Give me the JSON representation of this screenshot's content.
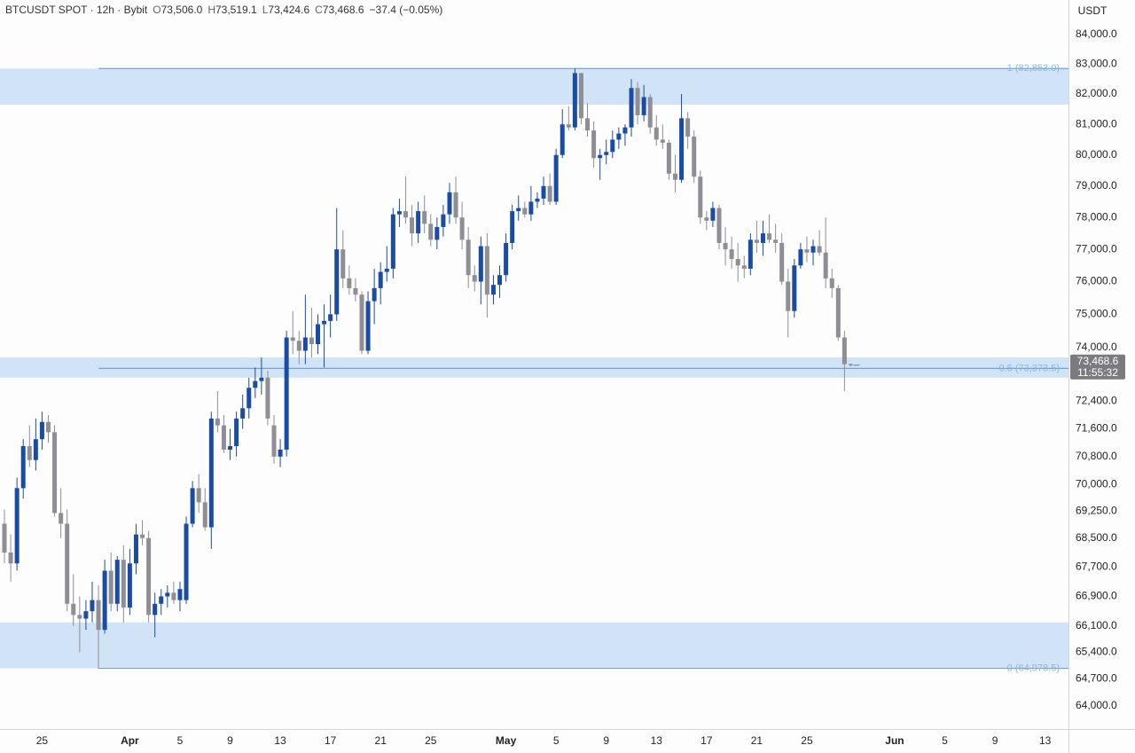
{
  "header": {
    "symbol": "BTCUSDT SPOT · 12h · Bybit",
    "open_label": "O",
    "open": "73,506.0",
    "high_label": "H",
    "high": "73,519.1",
    "low_label": "L",
    "low": "73,424.6",
    "close_label": "C",
    "close": "73,468.6",
    "change": "−37.4 (−0.05%)"
  },
  "chart_data": {
    "type": "candlestick",
    "axis_unit": "USDT",
    "log_scale": true,
    "grid": false,
    "up_color": "#1b4ca4",
    "down_color": "#8e8e94",
    "zone_color": "#cfe1f5",
    "fib_color": "#6fa3dc",
    "ylim": [
      63400,
      85185
    ],
    "yticks": [
      {
        "value": 84000,
        "label": "84,000.0"
      },
      {
        "value": 83000,
        "label": "83,000.0"
      },
      {
        "value": 82000,
        "label": "82,000.0"
      },
      {
        "value": 81000,
        "label": "81,000.0"
      },
      {
        "value": 80000,
        "label": "80,000.0"
      },
      {
        "value": 79000,
        "label": "79,000.0"
      },
      {
        "value": 78000,
        "label": "78,000.0"
      },
      {
        "value": 77000,
        "label": "77,000.0"
      },
      {
        "value": 76000,
        "label": "76,000.0"
      },
      {
        "value": 75000,
        "label": "75,000.0"
      },
      {
        "value": 74000,
        "label": "74,000.0"
      },
      {
        "value": 72400,
        "label": "72,400.0"
      },
      {
        "value": 71600,
        "label": "71,600.0"
      },
      {
        "value": 70800,
        "label": "70,800.0"
      },
      {
        "value": 70000,
        "label": "70,000.0"
      },
      {
        "value": 69250,
        "label": "69,250.0"
      },
      {
        "value": 68500,
        "label": "68,500.0"
      },
      {
        "value": 67700,
        "label": "67,700.0"
      },
      {
        "value": 66900,
        "label": "66,900.0"
      },
      {
        "value": 66100,
        "label": "66,100.0"
      },
      {
        "value": 65400,
        "label": "65,400.0"
      },
      {
        "value": 64700,
        "label": "64,700.0"
      },
      {
        "value": 64000,
        "label": "64,000.0"
      }
    ],
    "zones": [
      [
        81650,
        82850
      ],
      [
        73100,
        73700
      ],
      [
        64978.5,
        66200
      ]
    ],
    "fib_start": 15,
    "fib_levels": [
      {
        "value": 82853,
        "label": "1 (82,853.0)"
      },
      {
        "value": 73373.5,
        "label": "0.5 (73,373.5)"
      },
      {
        "value": 64978.5,
        "label": "0 (64,978.5)"
      }
    ],
    "price_label": {
      "value": 73468.6,
      "label": "73,468.6"
    },
    "countdown": "11:55:32",
    "categories": [
      null,
      null,
      null,
      null,
      null,
      null,
      "25",
      null,
      null,
      null,
      null,
      null,
      null,
      null,
      null,
      null,
      null,
      null,
      null,
      null,
      "Apr",
      null,
      null,
      null,
      null,
      null,
      null,
      null,
      "5",
      null,
      null,
      null,
      null,
      null,
      null,
      null,
      "9",
      null,
      null,
      null,
      null,
      null,
      null,
      null,
      "13",
      null,
      null,
      null,
      null,
      null,
      null,
      null,
      "17",
      null,
      null,
      null,
      null,
      null,
      null,
      null,
      "21",
      null,
      null,
      null,
      null,
      null,
      null,
      null,
      "25",
      null,
      null,
      null,
      null,
      null,
      null,
      null,
      null,
      null,
      null,
      null,
      "May",
      null,
      null,
      null,
      null,
      null,
      null,
      null,
      "5",
      null,
      null,
      null,
      null,
      null,
      null,
      null,
      "9",
      null,
      null,
      null,
      null,
      null,
      null,
      null,
      "13",
      null,
      null,
      null,
      null,
      null,
      null,
      null,
      "17",
      null,
      null,
      null,
      null,
      null,
      null,
      null,
      "21",
      null,
      null,
      null,
      null,
      null,
      null,
      null,
      "25",
      null,
      null,
      null,
      null,
      null,
      null,
      null,
      null,
      null,
      null,
      null,
      null,
      null,
      "Jun",
      null,
      null,
      null,
      null,
      null,
      null,
      null,
      "5",
      null,
      null,
      null,
      null,
      null,
      null,
      null,
      "9",
      null,
      null,
      null,
      null,
      null,
      null,
      null,
      "13",
      null,
      null,
      null
    ],
    "candles": [
      [
        68900,
        69300,
        67800,
        68100
      ],
      [
        68100,
        68600,
        67300,
        67800
      ],
      [
        67800,
        70200,
        67600,
        69900
      ],
      [
        69900,
        71300,
        69600,
        71100
      ],
      [
        71100,
        71700,
        70500,
        70700
      ],
      [
        70700,
        71900,
        70400,
        71300
      ],
      [
        71300,
        72100,
        71000,
        71800
      ],
      [
        71800,
        72000,
        71200,
        71500
      ],
      [
        71500,
        71700,
        69100,
        69200
      ],
      [
        69200,
        69900,
        68500,
        68900
      ],
      [
        68900,
        69300,
        66500,
        66700
      ],
      [
        66700,
        67500,
        66100,
        66400
      ],
      [
        66400,
        66900,
        65400,
        66300
      ],
      [
        66300,
        66800,
        66000,
        66500
      ],
      [
        66500,
        67300,
        66200,
        66800
      ],
      [
        66800,
        67200,
        64978.5,
        66000
      ],
      [
        66000,
        67900,
        65900,
        67600
      ],
      [
        67600,
        68100,
        66500,
        66700
      ],
      [
        66700,
        68000,
        66500,
        67900
      ],
      [
        67900,
        68300,
        66200,
        66600
      ],
      [
        66600,
        68200,
        66400,
        67800
      ],
      [
        67800,
        68900,
        67500,
        68600
      ],
      [
        68600,
        69000,
        68300,
        68500
      ],
      [
        68500,
        68700,
        66200,
        66400
      ],
      [
        66400,
        67000,
        65800,
        66700
      ],
      [
        66700,
        67100,
        66400,
        66900
      ],
      [
        66900,
        67200,
        66600,
        67000
      ],
      [
        67000,
        67300,
        66700,
        66800
      ],
      [
        66800,
        67300,
        66500,
        67100
      ],
      [
        66800,
        69100,
        66700,
        68900
      ],
      [
        68900,
        70100,
        68800,
        69900
      ],
      [
        69900,
        70300,
        69200,
        69500
      ],
      [
        69500,
        69900,
        68700,
        68800
      ],
      [
        68800,
        72100,
        68200,
        71900
      ],
      [
        71900,
        72700,
        71500,
        71700
      ],
      [
        71700,
        72000,
        70900,
        71000
      ],
      [
        71000,
        71600,
        70700,
        71100
      ],
      [
        71100,
        72100,
        70800,
        71900
      ],
      [
        71900,
        72600,
        71600,
        72200
      ],
      [
        72200,
        73100,
        71900,
        72800
      ],
      [
        72800,
        73400,
        72500,
        73000
      ],
      [
        73000,
        73700,
        72600,
        73100
      ],
      [
        73100,
        73300,
        71700,
        71900
      ],
      [
        71700,
        72000,
        70600,
        70800
      ],
      [
        70800,
        71300,
        70500,
        71000
      ],
      [
        71000,
        74500,
        70800,
        74300
      ],
      [
        74300,
        75100,
        73800,
        74200
      ],
      [
        74200,
        74500,
        73500,
        73900
      ],
      [
        73900,
        75600,
        73500,
        74300
      ],
      [
        74300,
        75200,
        73700,
        74100
      ],
      [
        74100,
        75000,
        73800,
        74700
      ],
      [
        74700,
        75300,
        73400,
        74800
      ],
      [
        74800,
        75600,
        74300,
        75000
      ],
      [
        75000,
        78300,
        74800,
        77000
      ],
      [
        77000,
        77600,
        75800,
        76100
      ],
      [
        76100,
        76500,
        75600,
        75800
      ],
      [
        75800,
        76100,
        75400,
        75600
      ],
      [
        75600,
        75700,
        73800,
        73900
      ],
      [
        73900,
        75700,
        73800,
        75400
      ],
      [
        75400,
        76400,
        74700,
        75800
      ],
      [
        75800,
        76600,
        75300,
        76300
      ],
      [
        76300,
        77100,
        76000,
        76400
      ],
      [
        76400,
        78300,
        76100,
        78100
      ],
      [
        78100,
        78600,
        77700,
        78200
      ],
      [
        78200,
        79300,
        77800,
        78000
      ],
      [
        78000,
        78400,
        77100,
        77500
      ],
      [
        77500,
        78500,
        77200,
        78200
      ],
      [
        78200,
        78700,
        77500,
        77800
      ],
      [
        77800,
        78100,
        77100,
        77300
      ],
      [
        77300,
        78000,
        77000,
        77700
      ],
      [
        77700,
        78400,
        77400,
        78100
      ],
      [
        78100,
        79100,
        77800,
        78800
      ],
      [
        78800,
        79300,
        77800,
        78000
      ],
      [
        78000,
        78500,
        77000,
        77300
      ],
      [
        77300,
        77700,
        75800,
        76200
      ],
      [
        76200,
        76500,
        75700,
        76000
      ],
      [
        76000,
        77400,
        75300,
        77100
      ],
      [
        77100,
        77500,
        74900,
        75600
      ],
      [
        75600,
        76200,
        75300,
        75900
      ],
      [
        75900,
        76500,
        75500,
        76200
      ],
      [
        76200,
        77500,
        76000,
        77200
      ],
      [
        77200,
        78400,
        77000,
        78200
      ],
      [
        78200,
        78700,
        77900,
        78300
      ],
      [
        78300,
        78500,
        78000,
        78100
      ],
      [
        78100,
        79000,
        77900,
        78500
      ],
      [
        78500,
        78800,
        78300,
        78600
      ],
      [
        78600,
        79300,
        78400,
        79000
      ],
      [
        79000,
        79400,
        78400,
        78500
      ],
      [
        78500,
        80200,
        78400,
        80000
      ],
      [
        80000,
        81500,
        79900,
        81000
      ],
      [
        81000,
        81600,
        80800,
        80900
      ],
      [
        80900,
        82853,
        80800,
        82700
      ],
      [
        82700,
        82700,
        81000,
        81200
      ],
      [
        81200,
        81700,
        80600,
        80800
      ],
      [
        80800,
        81100,
        79600,
        79900
      ],
      [
        79900,
        80200,
        79200,
        80000
      ],
      [
        80000,
        80500,
        79700,
        80100
      ],
      [
        80100,
        80800,
        79900,
        80500
      ],
      [
        80500,
        80900,
        80200,
        80700
      ],
      [
        80700,
        81000,
        80300,
        80900
      ],
      [
        80900,
        82500,
        80600,
        82200
      ],
      [
        82200,
        82400,
        81000,
        81300
      ],
      [
        81300,
        82300,
        81100,
        81900
      ],
      [
        81900,
        82000,
        80700,
        80900
      ],
      [
        80900,
        81300,
        80300,
        80500
      ],
      [
        80500,
        81000,
        80200,
        80400
      ],
      [
        80400,
        80500,
        79200,
        79400
      ],
      [
        79400,
        80000,
        78800,
        79200
      ],
      [
        79200,
        82000,
        79100,
        81200
      ],
      [
        81200,
        81400,
        80200,
        80600
      ],
      [
        80600,
        80800,
        79100,
        79300
      ],
      [
        79300,
        79500,
        77800,
        78000
      ],
      [
        78000,
        78200,
        77600,
        77900
      ],
      [
        77900,
        78500,
        77700,
        78300
      ],
      [
        78300,
        78400,
        77000,
        77200
      ],
      [
        77200,
        77700,
        76500,
        77000
      ],
      [
        77000,
        77400,
        76400,
        76700
      ],
      [
        76700,
        77200,
        76000,
        76500
      ],
      [
        76500,
        76800,
        76100,
        76400
      ],
      [
        76400,
        77500,
        76200,
        77300
      ],
      [
        77300,
        77900,
        76900,
        77200
      ],
      [
        77200,
        77900,
        76800,
        77500
      ],
      [
        77500,
        78100,
        77200,
        77300
      ],
      [
        77300,
        77800,
        76900,
        77200
      ],
      [
        77200,
        77500,
        75900,
        76000
      ],
      [
        76000,
        76400,
        74300,
        75100
      ],
      [
        75100,
        76700,
        74900,
        76500
      ],
      [
        76500,
        77200,
        76400,
        77000
      ],
      [
        77000,
        77400,
        76600,
        76900
      ],
      [
        76900,
        77300,
        76500,
        77100
      ],
      [
        77100,
        77600,
        76800,
        76900
      ],
      [
        76900,
        78000,
        75800,
        76100
      ],
      [
        76100,
        76400,
        75500,
        75800
      ],
      [
        75800,
        75900,
        74200,
        74300
      ],
      [
        74300,
        74500,
        72700,
        73500
      ],
      [
        73506,
        73519.1,
        73424.6,
        73468.6
      ],
      null,
      null,
      null,
      null,
      null,
      null,
      null,
      null,
      null,
      null,
      null,
      null,
      null,
      null,
      null,
      null,
      null,
      null,
      null,
      null,
      null,
      null,
      null,
      null,
      null,
      null,
      null,
      null,
      null,
      null,
      null,
      null,
      null,
      null
    ]
  }
}
